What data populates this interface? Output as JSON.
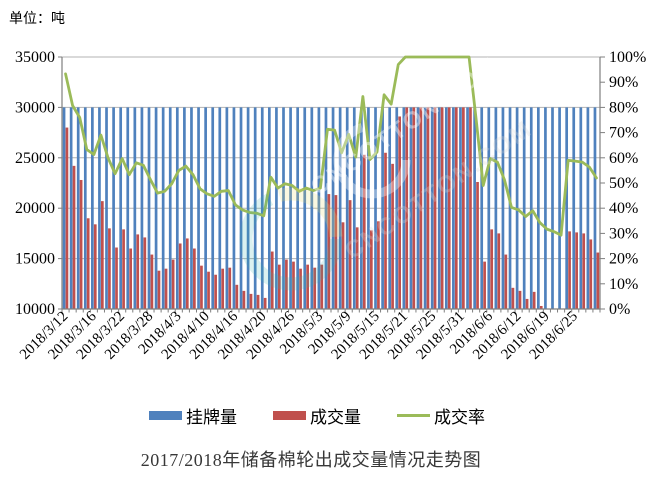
{
  "page": {
    "background": "#ffffff"
  },
  "chart": {
    "unit_label": "单位：吨",
    "title": "2017/2018年储备棉轮出成交量情况走势图",
    "legend": [
      {
        "label": "挂牌量",
        "marker": "bar",
        "color": "#4f81bd"
      },
      {
        "label": "成交量",
        "marker": "bar",
        "color": "#c0504d"
      },
      {
        "label": "成交率",
        "marker": "line",
        "color": "#9bbb59"
      }
    ],
    "watermark_text": "CNCOTTON.COM",
    "colors": {
      "listed_bar": "#4f81bd",
      "sold_bar": "#c0504d",
      "rate_line": "#9bbb59",
      "gridline": "#b3b3b3",
      "axis": "#7f7f7f",
      "text": "#000000"
    }
  },
  "chart_data": {
    "type": "bar",
    "subtype": "combo-bar-line-dual-axis",
    "title": "2017/2018年储备棉轮出成交量情况走势图",
    "xlabel": "",
    "ylabel": "单位：吨",
    "grid": "horizontal",
    "legend_position": "bottom",
    "x": [
      "2018/3/12",
      "2018/3/13",
      "2018/3/14",
      "2018/3/15",
      "2018/3/16",
      "2018/3/19",
      "2018/3/20",
      "2018/3/21",
      "2018/3/22",
      "2018/3/23",
      "2018/3/26",
      "2018/3/27",
      "2018/3/28",
      "2018/3/29",
      "2018/3/30",
      "2018/4/2",
      "2018/4/3",
      "2018/4/4",
      "2018/4/8",
      "2018/4/9",
      "2018/4/10",
      "2018/4/11",
      "2018/4/12",
      "2018/4/13",
      "2018/4/16",
      "2018/4/17",
      "2018/4/18",
      "2018/4/19",
      "2018/4/20",
      "2018/4/23",
      "2018/4/24",
      "2018/4/25",
      "2018/4/26",
      "2018/4/27",
      "2018/4/28",
      "2018/5/2",
      "2018/5/3",
      "2018/5/4",
      "2018/5/7",
      "2018/5/8",
      "2018/5/9",
      "2018/5/10",
      "2018/5/11",
      "2018/5/14",
      "2018/5/15",
      "2018/5/16",
      "2018/5/17",
      "2018/5/18",
      "2018/5/21",
      "2018/5/22",
      "2018/5/23",
      "2018/5/24",
      "2018/5/25",
      "2018/5/28",
      "2018/5/29",
      "2018/5/30",
      "2018/5/31",
      "2018/6/1",
      "2018/6/4",
      "2018/6/5",
      "2018/6/6",
      "2018/6/7",
      "2018/6/8",
      "2018/6/11",
      "2018/6/12",
      "2018/6/13",
      "2018/6/14",
      "2018/6/15",
      "2018/6/19",
      "2018/6/20",
      "2018/6/21",
      "2018/6/22",
      "2018/6/25",
      "2018/6/26",
      "2018/6/27",
      "2018/6/28"
    ],
    "x_axis": {
      "label_every": 4,
      "visible_tick_labels": [
        "2018/3/12",
        "2018/3/16",
        "2018/3/22",
        "2018/3/28",
        "2018/4/3",
        "2018/4/10",
        "2018/4/16",
        "2018/4/20",
        "2018/4/26",
        "2018/5/3",
        "2018/5/9",
        "2018/5/15",
        "2018/5/21",
        "2018/5/25",
        "2018/5/31",
        "2018/6/6",
        "2018/6/12",
        "2018/6/19",
        "2018/6/25"
      ]
    },
    "left_axis": {
      "min": 10000,
      "max": 35000,
      "step": 5000,
      "tick_labels": [
        "35000",
        "30000",
        "25000",
        "20000",
        "15000",
        "10000"
      ]
    },
    "right_axis": {
      "min": 0,
      "max": 100,
      "step": 10,
      "tick_labels": [
        "100%",
        "90%",
        "80%",
        "70%",
        "60%",
        "50%",
        "40%",
        "30%",
        "20%",
        "10%",
        "0%"
      ]
    },
    "series": [
      {
        "name": "挂牌量",
        "type": "bar",
        "axis": "left",
        "color": "#4f81bd",
        "values": [
          30000,
          30000,
          30000,
          30000,
          30000,
          30000,
          30000,
          30000,
          30000,
          30000,
          30000,
          30000,
          30000,
          30000,
          30000,
          30000,
          30000,
          30000,
          30000,
          30000,
          30000,
          30000,
          30000,
          30000,
          30000,
          30000,
          30000,
          30000,
          30000,
          30000,
          30000,
          30000,
          30000,
          30000,
          30000,
          30000,
          30000,
          30000,
          30000,
          30000,
          30000,
          30000,
          30000,
          30000,
          30000,
          30000,
          30000,
          30000,
          30000,
          30000,
          30000,
          30000,
          30000,
          30000,
          30000,
          30000,
          30000,
          30000,
          30000,
          30000,
          30000,
          30000,
          30000,
          30000,
          30000,
          30000,
          30000,
          30000,
          30000,
          30000,
          30000,
          30000,
          30000,
          30000,
          30000,
          30000
        ]
      },
      {
        "name": "成交量",
        "type": "bar",
        "axis": "left",
        "color": "#c0504d",
        "values": [
          28000,
          24200,
          22800,
          19000,
          18400,
          20700,
          18000,
          16100,
          17900,
          16000,
          17400,
          17100,
          15400,
          13800,
          14000,
          14900,
          16500,
          17000,
          16000,
          14300,
          13700,
          13400,
          14000,
          14100,
          12400,
          11800,
          11500,
          11400,
          11100,
          15700,
          14400,
          14900,
          14700,
          14000,
          14400,
          14100,
          14400,
          21400,
          21300,
          18600,
          20800,
          18100,
          25300,
          17800,
          18700,
          25500,
          24400,
          29100,
          30000,
          30000,
          30000,
          30000,
          30000,
          30000,
          30000,
          30000,
          30000,
          30000,
          22600,
          14700,
          17900,
          17500,
          15400,
          12100,
          11800,
          11000,
          11700,
          10300,
          9500,
          9200,
          8800,
          17700,
          17600,
          17500,
          16900,
          15600
        ]
      },
      {
        "name": "成交率",
        "type": "line",
        "axis": "right",
        "color": "#9bbb59",
        "unit": "%",
        "values_percent": [
          93.3,
          80.7,
          76.0,
          63.3,
          61.3,
          69.0,
          60.0,
          53.7,
          59.7,
          53.3,
          58.0,
          57.0,
          51.3,
          46.0,
          46.7,
          49.7,
          55.0,
          56.7,
          53.3,
          47.7,
          45.7,
          44.7,
          46.7,
          47.0,
          41.3,
          39.3,
          38.3,
          38.0,
          37.0,
          52.3,
          48.0,
          49.7,
          49.0,
          46.7,
          48.0,
          47.0,
          48.0,
          71.3,
          71.0,
          62.0,
          69.3,
          60.3,
          84.3,
          59.3,
          62.3,
          85.0,
          81.3,
          97.0,
          100.0,
          100.0,
          100.0,
          100.0,
          100.0,
          100.0,
          100.0,
          100.0,
          100.0,
          100.0,
          75.3,
          49.0,
          59.7,
          58.3,
          51.3,
          40.3,
          39.3,
          36.7,
          39.0,
          34.3,
          31.7,
          30.7,
          29.3,
          59.0,
          58.7,
          58.3,
          56.3,
          52.0
        ]
      }
    ]
  }
}
